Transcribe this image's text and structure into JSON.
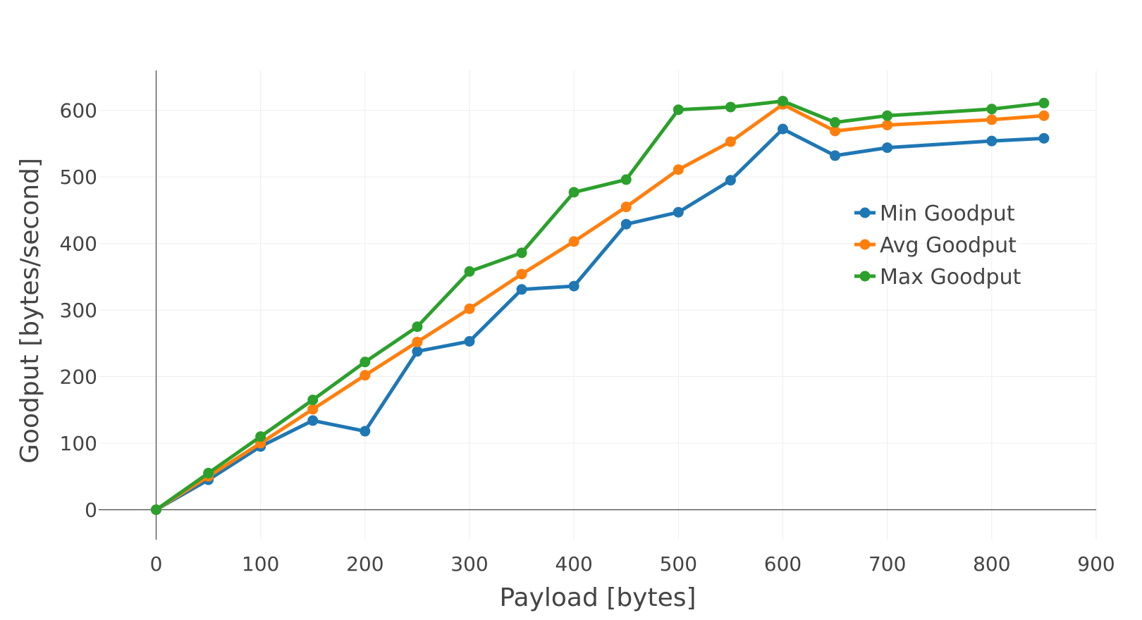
{
  "chart_data": {
    "type": "line",
    "title": "",
    "xlabel": "Payload [bytes]",
    "ylabel": "Goodput [bytes/second]",
    "xlim": [
      -55,
      900
    ],
    "ylim": [
      -45,
      660
    ],
    "x_ticks": [
      0,
      100,
      200,
      300,
      400,
      500,
      600,
      700,
      800,
      900
    ],
    "y_ticks": [
      0,
      100,
      200,
      300,
      400,
      500,
      600
    ],
    "x_tick_labels": [
      "0",
      "100",
      "200",
      "300",
      "400",
      "500",
      "600",
      "700",
      "800",
      "900"
    ],
    "y_tick_labels": [
      "0",
      "100",
      "200",
      "300",
      "400",
      "500",
      "600"
    ],
    "grid": true,
    "legend_position": "right",
    "x": [
      0,
      50,
      100,
      150,
      200,
      250,
      300,
      350,
      400,
      450,
      500,
      550,
      600,
      650,
      700,
      800,
      850
    ],
    "series": [
      {
        "name": "Min Goodput",
        "color": "#1f77b4",
        "values": [
          0,
          45,
          95,
          134,
          118,
          238,
          253,
          331,
          336,
          429,
          447,
          495,
          572,
          532,
          544,
          554,
          558
        ]
      },
      {
        "name": "Avg Goodput",
        "color": "#ff7f0e",
        "values": [
          0,
          50,
          100,
          151,
          202,
          252,
          302,
          354,
          403,
          455,
          511,
          553,
          609,
          569,
          578,
          586,
          592
        ]
      },
      {
        "name": "Max Goodput",
        "color": "#2ca02c",
        "values": [
          0,
          55,
          110,
          165,
          222,
          275,
          358,
          386,
          477,
          496,
          601,
          605,
          614,
          582,
          592,
          602,
          611
        ]
      }
    ]
  }
}
